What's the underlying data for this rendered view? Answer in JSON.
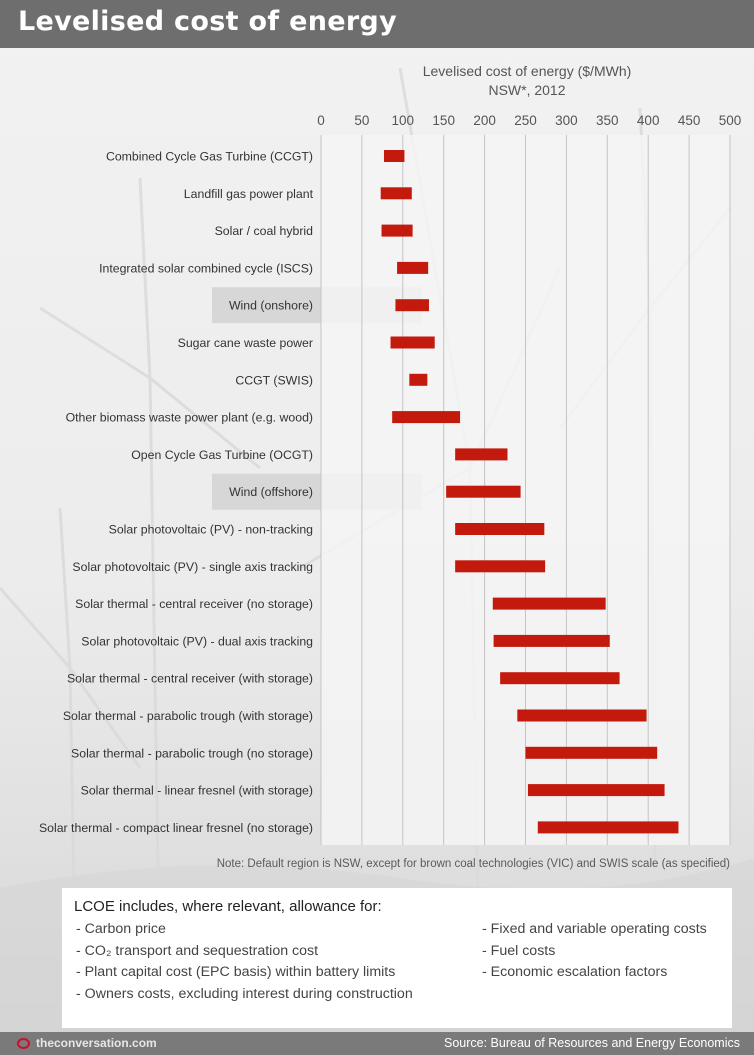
{
  "header": {
    "title": "Levelised cost of energy"
  },
  "chart_data": {
    "type": "bar",
    "subtype": "floating-range-horizontal",
    "title": "Levelised cost of energy ($/MWh)",
    "subtitle": "NSW*, 2012",
    "xlim": [
      0,
      500
    ],
    "xticks": [
      "0",
      "50",
      "100",
      "150",
      "200",
      "250",
      "300",
      "350",
      "400",
      "450",
      "500"
    ],
    "grid": true,
    "bar_color": "#c41a0e",
    "highlight_color": "#d2d2d2",
    "categories": [
      "Combined Cycle Gas Turbine (CCGT)",
      "Landfill gas power plant",
      "Solar / coal hybrid",
      "Integrated solar combined cycle (ISCS)",
      "Wind (onshore)",
      "Sugar cane waste power",
      "CCGT (SWIS)",
      "Other biomass waste power plant (e.g. wood)",
      "Open Cycle Gas Turbine (OCGT)",
      "Wind (offshore)",
      "Solar photovoltaic (PV) - non-tracking",
      "Solar photovoltaic (PV) - single axis tracking",
      "Solar thermal - central receiver (no storage)",
      "Solar photovoltaic (PV) - dual axis tracking",
      "Solar thermal - central receiver (with storage)",
      "Solar thermal - parabolic trough (with storage)",
      "Solar thermal - parabolic trough (no storage)",
      "Solar thermal - linear fresnel (with storage)",
      "Solar thermal - compact linear fresnel (no storage)"
    ],
    "highlighted": [
      "Wind (onshore)",
      "Wind (offshore)"
    ],
    "ranges": [
      [
        77,
        102
      ],
      [
        73,
        111
      ],
      [
        74,
        112
      ],
      [
        93,
        131
      ],
      [
        91,
        132
      ],
      [
        85,
        139
      ],
      [
        108,
        130
      ],
      [
        87,
        170
      ],
      [
        164,
        228
      ],
      [
        153,
        244
      ],
      [
        164,
        273
      ],
      [
        164,
        274
      ],
      [
        210,
        348
      ],
      [
        211,
        353
      ],
      [
        219,
        365
      ],
      [
        240,
        398
      ],
      [
        250,
        411
      ],
      [
        253,
        420
      ],
      [
        265,
        437
      ]
    ]
  },
  "note": "Note: Default region is NSW, except for brown coal technologies (VIC) and SWIS scale (as specified)",
  "lcoe_box": {
    "heading": "LCOE includes, where relevant, allowance for:",
    "left_items": [
      "- Carbon price",
      "- CO₂ transport and sequestration cost",
      "- Plant capital cost (EPC basis) within battery limits",
      "- Owners costs, excluding interest during construction"
    ],
    "right_items": [
      "- Fixed and variable operating costs",
      "- Fuel costs",
      "- Economic escalation factors"
    ]
  },
  "footer": {
    "logo_text": "theconversation.com",
    "source": "Source: Bureau of Resources and Energy Economics"
  }
}
